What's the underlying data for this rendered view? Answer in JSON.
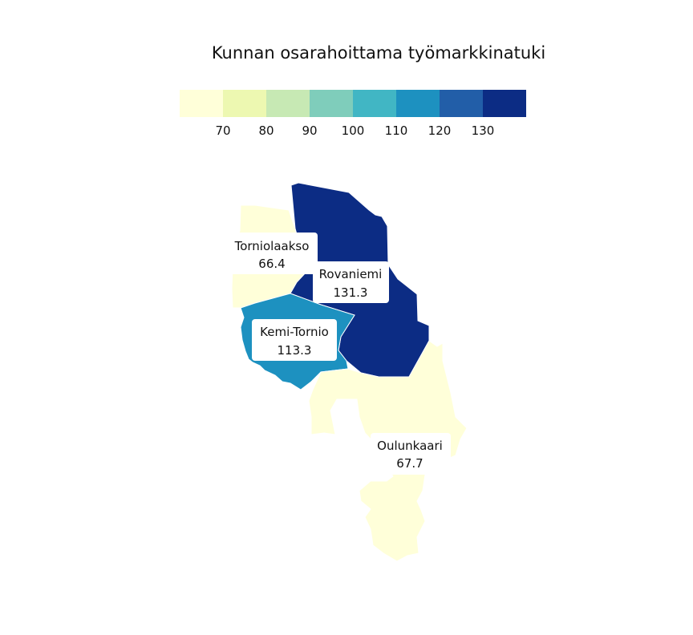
{
  "title": "Kunnan osarahoittama työmarkkinatuki",
  "legend": {
    "colors": [
      "#ffffd9",
      "#edf8b1",
      "#c7e9b4",
      "#7fcdbb",
      "#41b6c4",
      "#1d91c0",
      "#225ea8",
      "#0c2c84"
    ],
    "ticks": [
      "70",
      "80",
      "90",
      "100",
      "110",
      "120",
      "130"
    ]
  },
  "regions": [
    {
      "name": "Torniolaakso",
      "value": "66.4",
      "color": "#ffffd9"
    },
    {
      "name": "Rovaniemi",
      "value": "131.3",
      "color": "#0c2c84"
    },
    {
      "name": "Kemi-Tornio",
      "value": "113.3",
      "color": "#1d91c0"
    },
    {
      "name": "Oulunkaari",
      "value": "67.7",
      "color": "#ffffd9"
    }
  ]
}
